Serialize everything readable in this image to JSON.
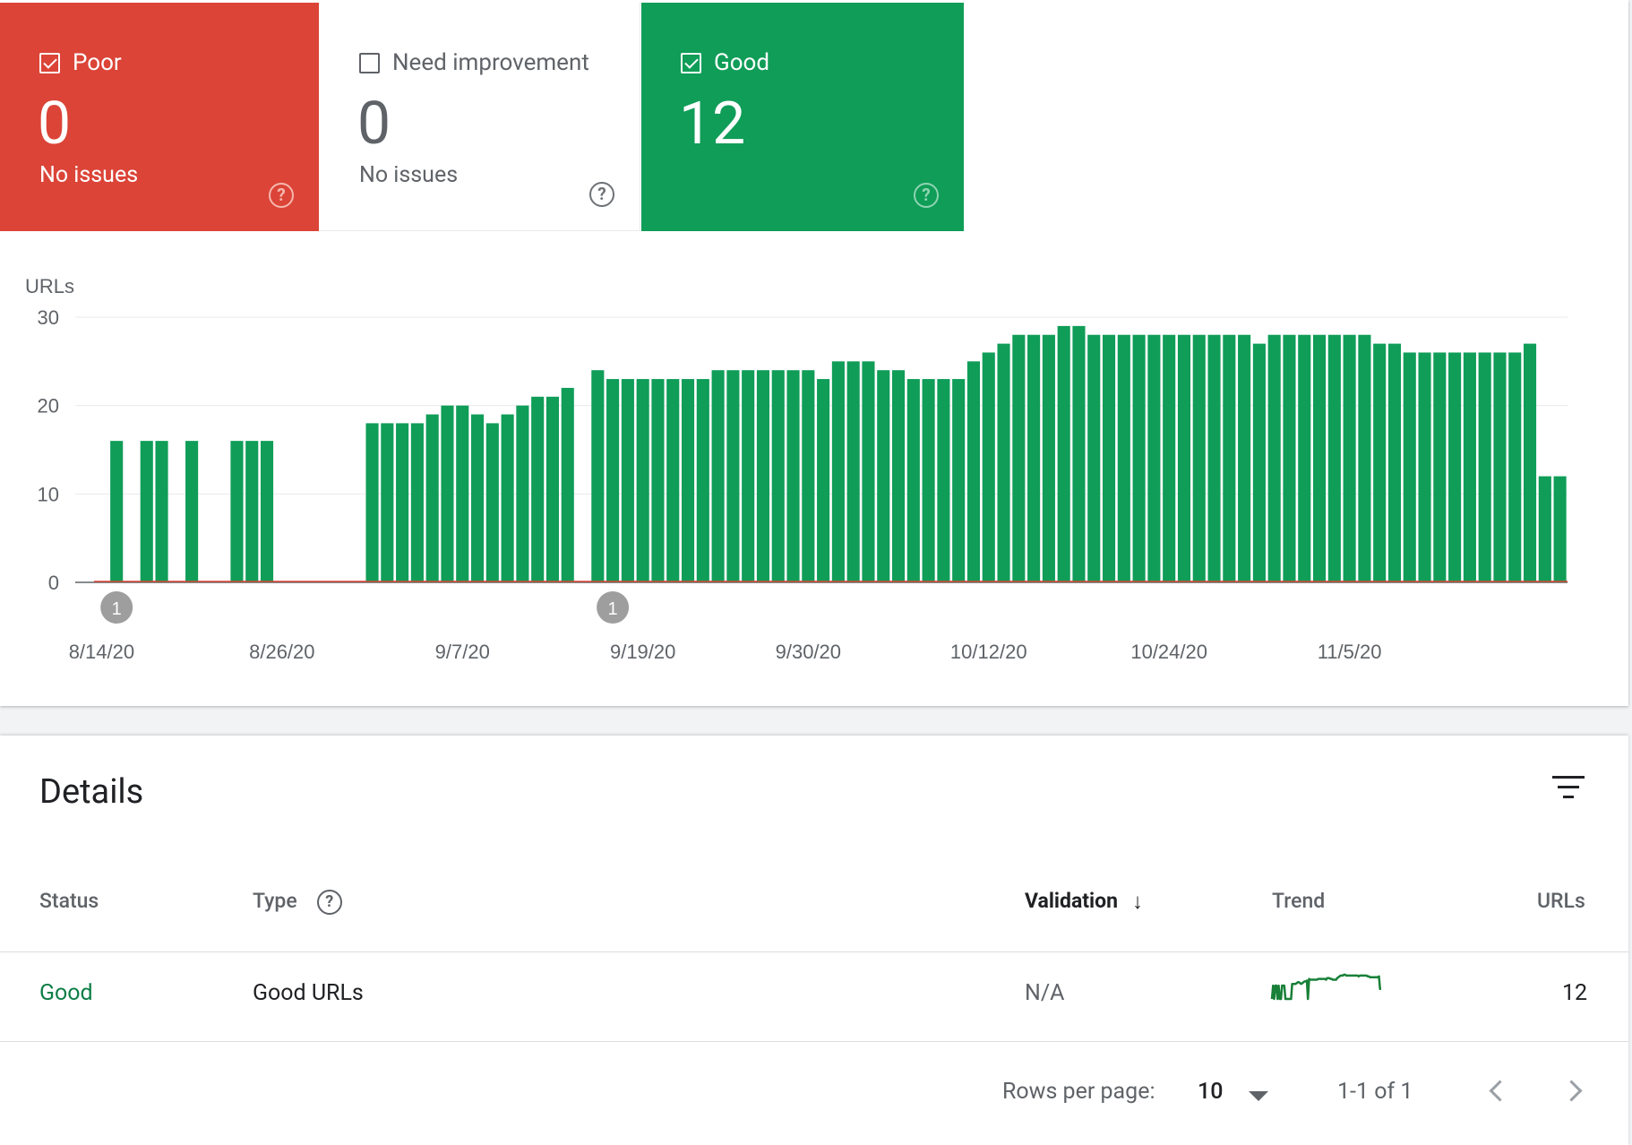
{
  "cards": {
    "poor": {
      "label": "Poor",
      "count": "0",
      "subtitle": "No issues",
      "checked": true,
      "color": "#db4437"
    },
    "need": {
      "label": "Need improvement",
      "count": "0",
      "subtitle": "No issues",
      "checked": false,
      "color": "#ffffff"
    },
    "good": {
      "label": "Good",
      "count": "12",
      "subtitle": "",
      "checked": true,
      "color": "#0f9d58"
    },
    "help_glyph": "?"
  },
  "chart_data": {
    "type": "bar",
    "ylabel": "URLs",
    "ylim": [
      0,
      30
    ],
    "yticks": [
      "0",
      "10",
      "20",
      "30"
    ],
    "xticks": [
      "8/14/20",
      "8/26/20",
      "9/7/20",
      "9/19/20",
      "9/30/20",
      "10/12/20",
      "10/24/20",
      "11/5/20"
    ],
    "annotations": [
      {
        "label": "1",
        "date": "8/15/20"
      },
      {
        "label": "1",
        "date": "9/17/20"
      }
    ],
    "series": [
      {
        "color": "#0f9d58",
        "values": [
          0,
          16,
          0,
          16,
          16,
          0,
          16,
          0,
          0,
          16,
          16,
          16,
          0,
          0,
          0,
          0,
          0,
          0,
          18,
          18,
          18,
          18,
          19,
          20,
          20,
          19,
          18,
          19,
          20,
          21,
          21,
          22,
          0,
          24,
          23,
          23,
          23,
          23,
          23,
          23,
          23,
          24,
          24,
          24,
          24,
          24,
          24,
          24,
          23,
          25,
          25,
          25,
          24,
          24,
          23,
          23,
          23,
          23,
          25,
          26,
          27,
          28,
          28,
          28,
          29,
          29,
          28,
          28,
          28,
          28,
          28,
          28,
          28,
          28,
          28,
          28,
          28,
          27,
          28,
          28,
          28,
          28,
          28,
          28,
          28,
          27,
          27,
          26,
          26,
          26,
          26,
          26,
          26,
          26,
          26,
          27,
          12,
          12
        ]
      },
      {
        "color": "#db4437",
        "values": [
          0,
          0,
          0,
          0,
          0,
          0,
          0,
          0,
          0,
          0,
          0,
          0,
          0,
          0,
          0,
          0,
          0,
          0,
          0,
          0,
          0,
          0,
          0,
          0,
          0,
          0,
          0,
          0,
          0,
          0,
          0,
          0,
          0,
          0,
          0,
          0,
          0,
          0,
          0,
          0,
          0,
          0,
          0,
          0,
          0,
          0,
          0,
          0,
          0,
          0,
          0,
          0,
          0,
          0,
          0,
          0,
          0,
          0,
          0,
          0,
          0,
          0,
          0,
          0,
          0,
          0,
          0,
          0,
          0,
          0,
          0,
          0,
          0,
          0,
          0,
          0,
          0,
          0,
          0,
          0,
          0,
          0,
          0,
          0,
          0,
          0,
          0,
          0,
          0,
          0,
          0,
          0,
          0,
          0,
          0,
          0,
          0,
          0
        ]
      }
    ]
  },
  "details": {
    "title": "Details",
    "columns": {
      "status": "Status",
      "type": "Type",
      "validation": "Validation",
      "trend": "Trend",
      "urls": "URLs"
    },
    "sort_glyph": "↓",
    "rows": [
      {
        "status": "Good",
        "type": "Good URLs",
        "validation": "N/A",
        "urls": "12"
      }
    ],
    "footer": {
      "rows_per_page_label": "Rows per page:",
      "rows_per_page_value": "10",
      "range": "1-1 of 1"
    }
  }
}
